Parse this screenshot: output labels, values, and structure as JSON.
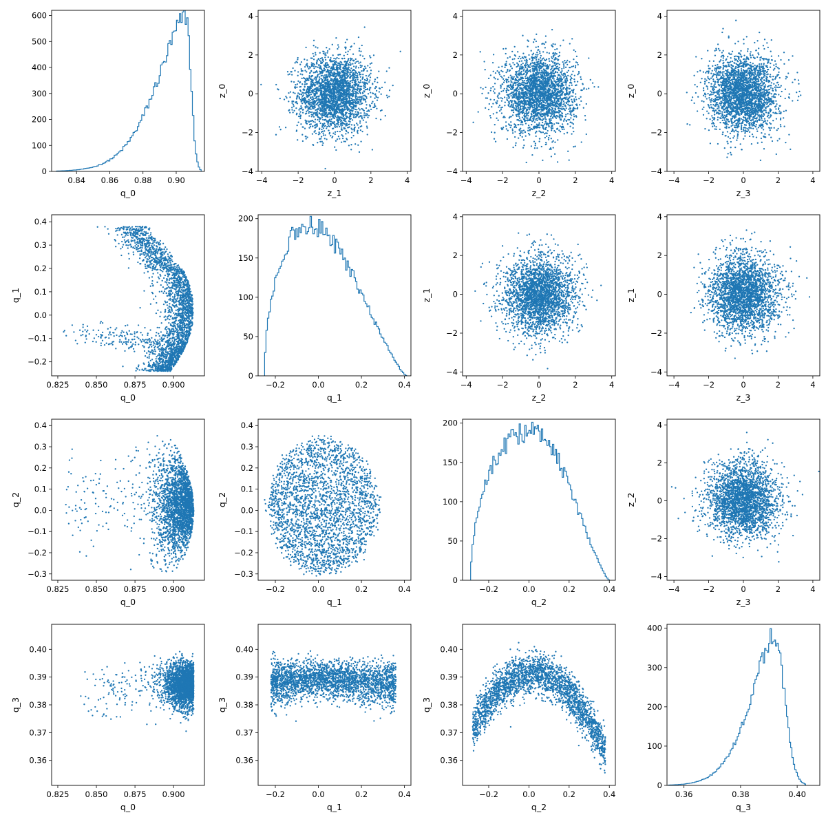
{
  "figure": {
    "background": "#ffffff",
    "series_color": "#1f77b4"
  },
  "chart_data": [
    {
      "type": "histogram",
      "row": 0,
      "col": 0,
      "xlabel": "q_0",
      "ylabel": "",
      "xlim": [
        0.825,
        0.917
      ],
      "ylim": [
        0,
        620
      ],
      "xticks": [
        0.84,
        0.86,
        0.88,
        0.9
      ],
      "xticklabels": [
        "0.84",
        "0.86",
        "0.88",
        "0.90"
      ],
      "yticks": [
        0,
        100,
        200,
        300,
        400,
        500,
        600
      ],
      "yticklabels": [
        "0",
        "100",
        "200",
        "300",
        "400",
        "500",
        "600"
      ],
      "dist": {
        "kind": "skew",
        "peak": 0.906,
        "left_tail": 0.86,
        "right": 0.915,
        "peak_count": 600
      }
    },
    {
      "type": "scatter",
      "row": 0,
      "col": 1,
      "xlabel": "z_1",
      "ylabel": "z_0",
      "xlim": [
        -4.2,
        4.2
      ],
      "ylim": [
        -4,
        4.3
      ],
      "xticks": [
        -4,
        -2,
        0,
        2,
        4
      ],
      "xticklabels": [
        "−4",
        "−2",
        "0",
        "2",
        "4"
      ],
      "yticks": [
        -4,
        -2,
        0,
        2,
        4
      ],
      "yticklabels": [
        "−4",
        "−2",
        "0",
        "2",
        "4"
      ],
      "cloud": {
        "kind": "gaussian",
        "cx": 0,
        "cy": 0,
        "sx": 1,
        "sy": 1
      }
    },
    {
      "type": "scatter",
      "row": 0,
      "col": 2,
      "xlabel": "z_2",
      "ylabel": "z_0",
      "xlim": [
        -4.2,
        4.2
      ],
      "ylim": [
        -4,
        4.3
      ],
      "xticks": [
        -4,
        -2,
        0,
        2,
        4
      ],
      "xticklabels": [
        "−4",
        "−2",
        "0",
        "2",
        "4"
      ],
      "yticks": [
        -4,
        -2,
        0,
        2,
        4
      ],
      "yticklabels": [
        "−4",
        "−2",
        "0",
        "2",
        "4"
      ],
      "cloud": {
        "kind": "gaussian",
        "cx": 0,
        "cy": 0,
        "sx": 1,
        "sy": 1
      }
    },
    {
      "type": "scatter",
      "row": 0,
      "col": 3,
      "xlabel": "z_3",
      "ylabel": "z_0",
      "xlim": [
        -4.4,
        4.4
      ],
      "ylim": [
        -4,
        4.3
      ],
      "xticks": [
        -4,
        -2,
        0,
        2,
        4
      ],
      "xticklabels": [
        "−4",
        "−2",
        "0",
        "2",
        "4"
      ],
      "yticks": [
        -4,
        -2,
        0,
        2,
        4
      ],
      "yticklabels": [
        "−4",
        "−2",
        "0",
        "2",
        "4"
      ],
      "cloud": {
        "kind": "gaussian",
        "cx": 0,
        "cy": 0,
        "sx": 1,
        "sy": 1
      }
    },
    {
      "type": "scatter",
      "row": 1,
      "col": 0,
      "xlabel": "q_0",
      "ylabel": "q_1",
      "xlim": [
        0.821,
        0.92
      ],
      "ylim": [
        -0.26,
        0.43
      ],
      "xticks": [
        0.825,
        0.85,
        0.875,
        0.9
      ],
      "xticklabels": [
        "0.825",
        "0.850",
        "0.875",
        "0.900"
      ],
      "yticks": [
        -0.2,
        -0.1,
        0.0,
        0.1,
        0.2,
        0.3,
        0.4
      ],
      "yticklabels": [
        "−0.2",
        "−0.1",
        "0.0",
        "0.1",
        "0.2",
        "0.3",
        "0.4"
      ],
      "cloud": {
        "kind": "crescent",
        "cx": 0.9,
        "cy": 0.05,
        "xmax": 0.913,
        "spread_y": 0.3,
        "tail": [
          0.83,
          -0.07
        ]
      }
    },
    {
      "type": "histogram",
      "row": 1,
      "col": 1,
      "xlabel": "q_1",
      "ylabel": "",
      "xlim": [
        -0.28,
        0.43
      ],
      "ylim": [
        0,
        205
      ],
      "xticks": [
        -0.2,
        0.0,
        0.2,
        0.4
      ],
      "xticklabels": [
        "−0.2",
        "0.0",
        "0.2",
        "0.4"
      ],
      "yticks": [
        0,
        50,
        100,
        150,
        200
      ],
      "yticklabels": [
        "0",
        "50",
        "100",
        "150",
        "200"
      ],
      "dist": {
        "kind": "hump",
        "left": -0.25,
        "right": 0.41,
        "peak": -0.04,
        "peak_count": 190
      }
    },
    {
      "type": "scatter",
      "row": 1,
      "col": 2,
      "xlabel": "z_2",
      "ylabel": "z_1",
      "xlim": [
        -4.2,
        4.2
      ],
      "ylim": [
        -4.2,
        4.1
      ],
      "xticks": [
        -4,
        -2,
        0,
        2,
        4
      ],
      "xticklabels": [
        "−4",
        "−2",
        "0",
        "2",
        "4"
      ],
      "yticks": [
        -4,
        -2,
        0,
        2,
        4
      ],
      "yticklabels": [
        "−4",
        "−2",
        "0",
        "2",
        "4"
      ],
      "cloud": {
        "kind": "gaussian",
        "cx": 0,
        "cy": 0,
        "sx": 1,
        "sy": 1
      }
    },
    {
      "type": "scatter",
      "row": 1,
      "col": 3,
      "xlabel": "z_3",
      "ylabel": "z_1",
      "xlim": [
        -4.4,
        4.4
      ],
      "ylim": [
        -4.2,
        4.1
      ],
      "xticks": [
        -4,
        -2,
        0,
        2,
        4
      ],
      "xticklabels": [
        "−4",
        "−2",
        "0",
        "2",
        "4"
      ],
      "yticks": [
        -4,
        -2,
        0,
        2,
        4
      ],
      "yticklabels": [
        "−4",
        "−2",
        "0",
        "2",
        "4"
      ],
      "cloud": {
        "kind": "gaussian",
        "cx": 0,
        "cy": 0,
        "sx": 1,
        "sy": 1
      }
    },
    {
      "type": "scatter",
      "row": 2,
      "col": 0,
      "xlabel": "q_0",
      "ylabel": "q_2",
      "xlim": [
        0.821,
        0.92
      ],
      "ylim": [
        -0.33,
        0.43
      ],
      "xticks": [
        0.825,
        0.85,
        0.875,
        0.9
      ],
      "xticklabels": [
        "0.825",
        "0.850",
        "0.875",
        "0.900"
      ],
      "yticks": [
        -0.3,
        -0.2,
        -0.1,
        0.0,
        0.1,
        0.2,
        0.3,
        0.4
      ],
      "yticklabels": [
        "−0.3",
        "−0.2",
        "−0.1",
        "0.0",
        "0.1",
        "0.2",
        "0.3",
        "0.4"
      ],
      "cloud": {
        "kind": "halfdisk",
        "cx": 0.905,
        "cy": 0.02,
        "xmax": 0.913,
        "spread_y": 0.3,
        "tail": [
          0.83,
          0.19
        ]
      }
    },
    {
      "type": "scatter",
      "row": 2,
      "col": 1,
      "xlabel": "q_1",
      "ylabel": "q_2",
      "xlim": [
        -0.28,
        0.43
      ],
      "ylim": [
        -0.33,
        0.43
      ],
      "xticks": [
        -0.2,
        0.0,
        0.2,
        0.4
      ],
      "xticklabels": [
        "−0.2",
        "0.0",
        "0.2",
        "0.4"
      ],
      "yticks": [
        -0.3,
        -0.2,
        -0.1,
        0.0,
        0.1,
        0.2,
        0.3,
        0.4
      ],
      "yticklabels": [
        "−0.3",
        "−0.2",
        "−0.1",
        "0.0",
        "0.1",
        "0.2",
        "0.3",
        "0.4"
      ],
      "cloud": {
        "kind": "disk",
        "cx": 0.02,
        "cy": 0.02,
        "rx": 0.24,
        "ry": 0.3
      }
    },
    {
      "type": "histogram",
      "row": 2,
      "col": 2,
      "xlabel": "q_2",
      "ylabel": "",
      "xlim": [
        -0.33,
        0.43
      ],
      "ylim": [
        0,
        205
      ],
      "xticks": [
        -0.2,
        0.0,
        0.2,
        0.4
      ],
      "xticklabels": [
        "−0.2",
        "0.0",
        "0.2",
        "0.4"
      ],
      "yticks": [
        0,
        50,
        100,
        150,
        200
      ],
      "yticklabels": [
        "0",
        "50",
        "100",
        "150",
        "200"
      ],
      "dist": {
        "kind": "hump",
        "left": -0.29,
        "right": 0.4,
        "peak": 0.02,
        "peak_count": 190
      }
    },
    {
      "type": "scatter",
      "row": 2,
      "col": 3,
      "xlabel": "z_3",
      "ylabel": "z_2",
      "xlim": [
        -4.4,
        4.4
      ],
      "ylim": [
        -4.2,
        4.3
      ],
      "xticks": [
        -4,
        -2,
        0,
        2,
        4
      ],
      "xticklabels": [
        "−4",
        "−2",
        "0",
        "2",
        "4"
      ],
      "yticks": [
        -4,
        -2,
        0,
        2,
        4
      ],
      "yticklabels": [
        "−4",
        "−2",
        "0",
        "2",
        "4"
      ],
      "cloud": {
        "kind": "gaussian",
        "cx": 0,
        "cy": 0,
        "sx": 1,
        "sy": 1
      }
    },
    {
      "type": "scatter",
      "row": 3,
      "col": 0,
      "xlabel": "q_0",
      "ylabel": "q_3",
      "xlim": [
        0.821,
        0.92
      ],
      "ylim": [
        0.351,
        0.409
      ],
      "xticks": [
        0.825,
        0.85,
        0.875,
        0.9
      ],
      "xticklabels": [
        "0.825",
        "0.850",
        "0.875",
        "0.900"
      ],
      "yticks": [
        0.36,
        0.37,
        0.38,
        0.39,
        0.4
      ],
      "yticklabels": [
        "0.36",
        "0.37",
        "0.38",
        "0.39",
        "0.40"
      ],
      "cloud": {
        "kind": "blob_q3_q0",
        "cx": 0.9,
        "cy": 0.39,
        "sx": 0.008,
        "sy": 0.006
      }
    },
    {
      "type": "scatter",
      "row": 3,
      "col": 1,
      "xlabel": "q_1",
      "ylabel": "q_3",
      "xlim": [
        -0.28,
        0.43
      ],
      "ylim": [
        0.351,
        0.409
      ],
      "xticks": [
        -0.2,
        0.0,
        0.2,
        0.4
      ],
      "xticklabels": [
        "−0.2",
        "0.0",
        "0.2",
        "0.4"
      ],
      "yticks": [
        0.36,
        0.37,
        0.38,
        0.39,
        0.4
      ],
      "yticklabels": [
        "0.36",
        "0.37",
        "0.38",
        "0.39",
        "0.40"
      ],
      "cloud": {
        "kind": "band_q3_q1",
        "cx": 0.0,
        "cy": 0.391,
        "rx": 0.25,
        "sy": 0.004
      }
    },
    {
      "type": "scatter",
      "row": 3,
      "col": 2,
      "xlabel": "q_2",
      "ylabel": "q_3",
      "xlim": [
        -0.33,
        0.43
      ],
      "ylim": [
        0.351,
        0.409
      ],
      "xticks": [
        -0.2,
        0.0,
        0.2,
        0.4
      ],
      "xticklabels": [
        "−0.2",
        "0.0",
        "0.2",
        "0.4"
      ],
      "yticks": [
        0.36,
        0.37,
        0.38,
        0.39,
        0.4
      ],
      "yticklabels": [
        "0.36",
        "0.37",
        "0.38",
        "0.39",
        "0.40"
      ],
      "cloud": {
        "kind": "arch_q3_q2",
        "cx": 0.02,
        "top": 0.393,
        "curv": 0.22,
        "sy": 0.004
      }
    },
    {
      "type": "histogram",
      "row": 3,
      "col": 3,
      "xlabel": "q_3",
      "ylabel": "",
      "xlim": [
        0.354,
        0.408
      ],
      "ylim": [
        0,
        410
      ],
      "xticks": [
        0.36,
        0.38,
        0.4
      ],
      "xticklabels": [
        "0.36",
        "0.38",
        "0.40"
      ],
      "yticks": [
        0,
        100,
        200,
        300,
        400
      ],
      "yticklabels": [
        "0",
        "100",
        "200",
        "300",
        "400"
      ],
      "dist": {
        "kind": "skew",
        "peak": 0.392,
        "left_tail": 0.37,
        "right": 0.403,
        "peak_count": 385
      }
    }
  ]
}
